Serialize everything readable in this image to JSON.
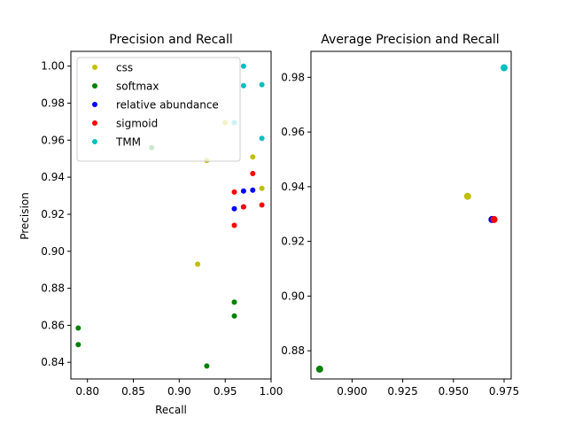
{
  "chart_data": [
    {
      "type": "scatter",
      "title": "Precision and Recall",
      "xlabel": "Recall",
      "ylabel": "Precision",
      "xlim": [
        0.782,
        1.0
      ],
      "ylim": [
        0.831,
        1.008
      ],
      "xticks": [
        0.8,
        0.85,
        0.9,
        0.95,
        1.0
      ],
      "xtick_labels": [
        "0.80",
        "0.85",
        "0.90",
        "0.95",
        "1.00"
      ],
      "yticks": [
        0.84,
        0.86,
        0.88,
        0.9,
        0.92,
        0.94,
        0.96,
        0.98,
        1.0
      ],
      "ytick_labels": [
        "0.84",
        "0.86",
        "0.88",
        "0.90",
        "0.92",
        "0.94",
        "0.96",
        "0.98",
        "1.00"
      ],
      "legend": {
        "location": "upper-left"
      },
      "series": [
        {
          "name": "css",
          "color": "#bfbf00",
          "points": [
            [
              0.92,
              0.893
            ],
            [
              0.93,
              0.949
            ],
            [
              0.95,
              0.9695
            ],
            [
              0.98,
              0.951
            ],
            [
              0.99,
              0.934
            ]
          ]
        },
        {
          "name": "softmax",
          "color": "#008000",
          "points": [
            [
              0.79,
              0.8585
            ],
            [
              0.79,
              0.8495
            ],
            [
              0.87,
              0.956
            ],
            [
              0.93,
              0.838
            ],
            [
              0.96,
              0.8725
            ],
            [
              0.96,
              0.865
            ]
          ]
        },
        {
          "name": "relative abundance",
          "color": "#0000ff",
          "points": [
            [
              0.96,
              0.923
            ],
            [
              0.97,
              0.9325
            ],
            [
              0.97,
              0.924
            ],
            [
              0.98,
              0.933
            ]
          ]
        },
        {
          "name": "sigmoid",
          "color": "#ff0000",
          "points": [
            [
              0.96,
              0.914
            ],
            [
              0.96,
              0.932
            ],
            [
              0.97,
              0.924
            ],
            [
              0.98,
              0.942
            ],
            [
              0.99,
              0.925
            ]
          ]
        },
        {
          "name": "TMM",
          "color": "#00bfbf",
          "points": [
            [
              0.96,
              0.9695
            ],
            [
              0.97,
              1.0
            ],
            [
              0.97,
              0.9895
            ],
            [
              0.99,
              0.99
            ],
            [
              0.99,
              0.961
            ]
          ]
        }
      ]
    },
    {
      "type": "scatter",
      "title": "Average Precision and Recall",
      "xlabel": "",
      "ylabel": "",
      "xlim": [
        0.8797,
        0.9785
      ],
      "ylim": [
        0.8697,
        0.9895
      ],
      "xticks": [
        0.9,
        0.925,
        0.95,
        0.975
      ],
      "xtick_labels": [
        "0.900",
        "0.925",
        "0.950",
        "0.975"
      ],
      "yticks": [
        0.88,
        0.9,
        0.92,
        0.94,
        0.96,
        0.98
      ],
      "ytick_labels": [
        "0.88",
        "0.90",
        "0.92",
        "0.94",
        "0.96",
        "0.98"
      ],
      "series": [
        {
          "name": "softmax",
          "color": "#008000",
          "points": [
            [
              0.884,
              0.8733
            ]
          ]
        },
        {
          "name": "css",
          "color": "#bfbf00",
          "points": [
            [
              0.957,
              0.9365
            ]
          ]
        },
        {
          "name": "relative abundance",
          "color": "#0000ff",
          "points": [
            [
              0.969,
              0.928
            ]
          ]
        },
        {
          "name": "sigmoid",
          "color": "#ff0000",
          "points": [
            [
              0.97,
              0.928
            ]
          ]
        },
        {
          "name": "TMM",
          "color": "#00bfbf",
          "points": [
            [
              0.975,
              0.9835
            ]
          ]
        }
      ]
    }
  ]
}
